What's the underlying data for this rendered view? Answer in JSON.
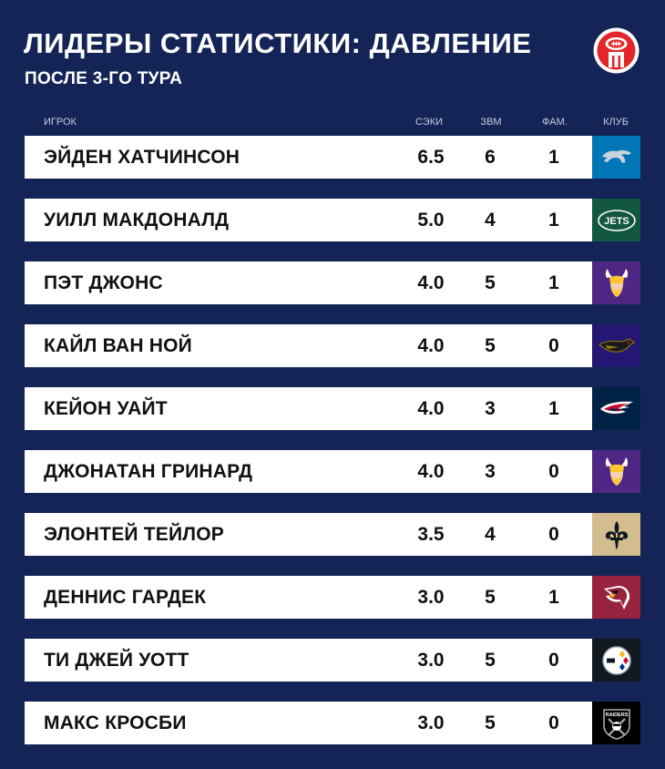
{
  "header": {
    "title": "ЛИДЕРЫ СТАТИСТИКИ: ДАВЛЕНИЕ",
    "subtitle": "ПОСЛЕ 3-ГО ТУРА"
  },
  "columns": {
    "player": "ИГРОК",
    "sacks": "СЭКИ",
    "pressure": "ЗВМ",
    "fumbles": "ФАМ.",
    "club": "КЛУБ"
  },
  "colors": {
    "background": "#142456",
    "row": "#ffffff",
    "text": "#111111"
  },
  "rows": [
    {
      "name": "ЭЙДЕН ХАТЧИНСОН",
      "sacks": "6.5",
      "pressure": "6",
      "fumbles": "1",
      "team_icon": "lions-logo-icon",
      "team_color": "#0076B6"
    },
    {
      "name": "УИЛЛ МАКДОНАЛД",
      "sacks": "5.0",
      "pressure": "4",
      "fumbles": "1",
      "team_icon": "jets-logo-icon",
      "team_color": "#125740",
      "logo_text": "JETS"
    },
    {
      "name": "ПЭТ ДЖОНС",
      "sacks": "4.0",
      "pressure": "5",
      "fumbles": "1",
      "team_icon": "vikings-logo-icon",
      "team_color": "#4F2683"
    },
    {
      "name": "КАЙЛ ВАН НОЙ",
      "sacks": "4.0",
      "pressure": "5",
      "fumbles": "0",
      "team_icon": "ravens-logo-icon",
      "team_color": "#241773"
    },
    {
      "name": "КЕЙОН УАЙТ",
      "sacks": "4.0",
      "pressure": "3",
      "fumbles": "1",
      "team_icon": "patriots-logo-icon",
      "team_color": "#002244"
    },
    {
      "name": "ДЖОНАТАН ГРИНАРД",
      "sacks": "4.0",
      "pressure": "3",
      "fumbles": "0",
      "team_icon": "vikings-logo-icon",
      "team_color": "#4F2683"
    },
    {
      "name": "ЭЛОНТЕЙ ТЕЙЛОР",
      "sacks": "3.5",
      "pressure": "4",
      "fumbles": "0",
      "team_icon": "saints-logo-icon",
      "team_color": "#D3BC8D"
    },
    {
      "name": "ДЕННИС ГАРДЕК",
      "sacks": "3.0",
      "pressure": "5",
      "fumbles": "1",
      "team_icon": "cardinals-logo-icon",
      "team_color": "#97233F"
    },
    {
      "name": "ТИ ДЖЕЙ УОТТ",
      "sacks": "3.0",
      "pressure": "5",
      "fumbles": "0",
      "team_icon": "steelers-logo-icon",
      "team_color": "#101820"
    },
    {
      "name": "МАКС КРОСБИ",
      "sacks": "3.0",
      "pressure": "5",
      "fumbles": "0",
      "team_icon": "raiders-logo-icon",
      "team_color": "#000000",
      "logo_text": "RAIDERS"
    }
  ]
}
